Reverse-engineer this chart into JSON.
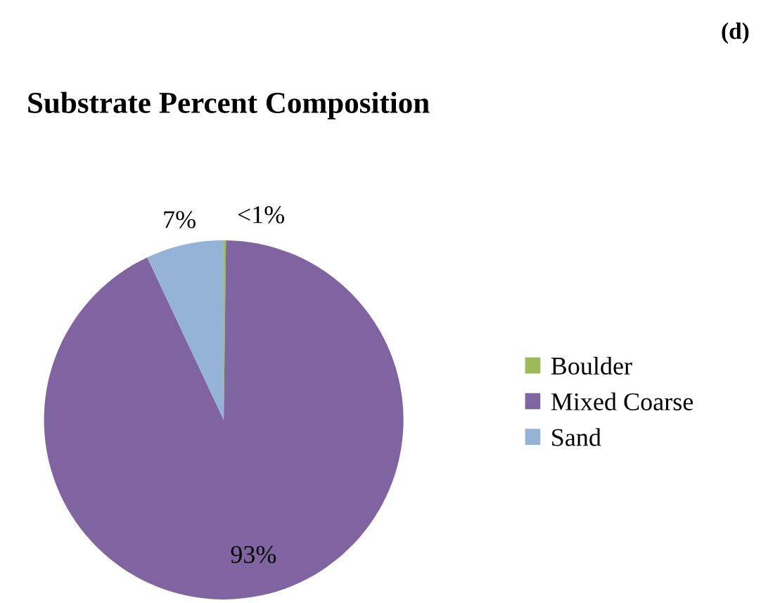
{
  "chart_data": {
    "type": "pie",
    "title": "Substrate Percent Composition",
    "annotations": [
      "(d)"
    ],
    "categories": [
      "Boulder",
      "Mixed Coarse",
      "Sand"
    ],
    "values": [
      0.2,
      92.8,
      7.0
    ],
    "value_labels": [
      "<1%",
      "93%",
      "7%"
    ],
    "colors": [
      "#9bbb59",
      "#8064a2",
      "#95b3d7"
    ],
    "legend": "right"
  }
}
